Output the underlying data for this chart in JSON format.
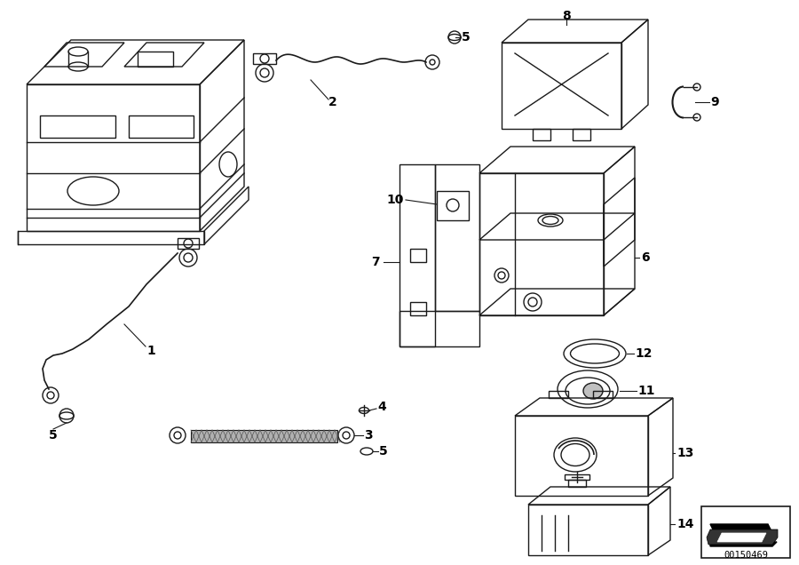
{
  "background_color": "#ffffff",
  "line_color": "#1a1a1a",
  "diagram_id": "00150469",
  "fig_width": 9.0,
  "fig_height": 6.36,
  "dpi": 100
}
